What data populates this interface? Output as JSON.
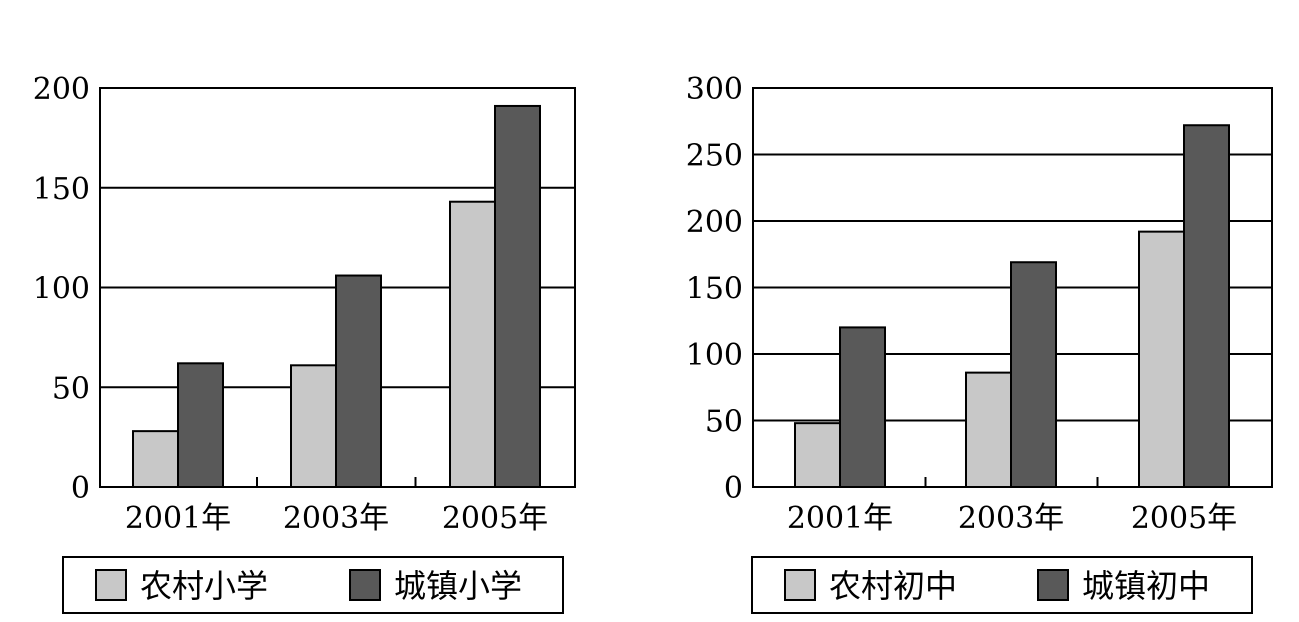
{
  "chart_data": [
    {
      "type": "bar",
      "categories": [
        "2001年",
        "2003年",
        "2005年"
      ],
      "series": [
        {
          "name": "农村小学",
          "values": [
            28,
            61,
            143
          ]
        },
        {
          "name": "城镇小学",
          "values": [
            62,
            106,
            191
          ]
        }
      ],
      "ylim": [
        0,
        200
      ],
      "yticks": [
        0,
        50,
        100,
        150,
        200
      ],
      "grid": true,
      "legend": "bottom",
      "colors": [
        "#c8c8c8",
        "#595959"
      ]
    },
    {
      "type": "bar",
      "categories": [
        "2001年",
        "2003年",
        "2005年"
      ],
      "series": [
        {
          "name": "农村初中",
          "values": [
            48,
            86,
            192
          ]
        },
        {
          "name": "城镇初中",
          "values": [
            120,
            169,
            272
          ]
        }
      ],
      "ylim": [
        0,
        300
      ],
      "yticks": [
        0,
        50,
        100,
        150,
        200,
        250,
        300
      ],
      "grid": true,
      "legend": "bottom",
      "colors": [
        "#c8c8c8",
        "#595959"
      ]
    }
  ]
}
